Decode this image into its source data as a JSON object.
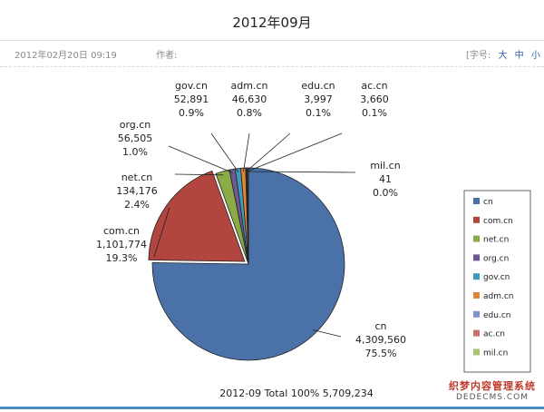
{
  "article": {
    "title": "2012年09月",
    "date": "2012年02月20日  09:19",
    "author_label": "作者:",
    "font_size_label": "[字号:",
    "font_size_options": [
      "大",
      "中",
      "小"
    ]
  },
  "watermark": {
    "line1": "织梦内容管理系统",
    "line2": "DEDECMS.COM"
  },
  "chart_data": {
    "type": "pie",
    "caption": "2012-09 Total 100%  5,709,234",
    "slices": [
      {
        "name": "cn",
        "value": 4309560,
        "value_label": "4,309,560",
        "percent": "75.5%",
        "color": "#4a72a8"
      },
      {
        "name": "com.cn",
        "value": 1101774,
        "value_label": "1,101,774",
        "percent": "19.3%",
        "color": "#b3453f"
      },
      {
        "name": "net.cn",
        "value": 134176,
        "value_label": "134,176",
        "percent": "2.4%",
        "color": "#8bab46"
      },
      {
        "name": "org.cn",
        "value": 56505,
        "value_label": "56,505",
        "percent": "1.0%",
        "color": "#6e5895"
      },
      {
        "name": "gov.cn",
        "value": 52891,
        "value_label": "52,891",
        "percent": "0.9%",
        "color": "#3e9cba"
      },
      {
        "name": "adm.cn",
        "value": 46630,
        "value_label": "46,630",
        "percent": "0.8%",
        "color": "#e18433"
      },
      {
        "name": "edu.cn",
        "value": 3997,
        "value_label": "3,997",
        "percent": "0.1%",
        "color": "#7d95c8"
      },
      {
        "name": "ac.cn",
        "value": 3660,
        "value_label": "3,660",
        "percent": "0.1%",
        "color": "#c9706c"
      },
      {
        "name": "mil.cn",
        "value": 41,
        "value_label": "41",
        "percent": "0.0%",
        "color": "#a9c370"
      }
    ],
    "legend_position": "right"
  }
}
